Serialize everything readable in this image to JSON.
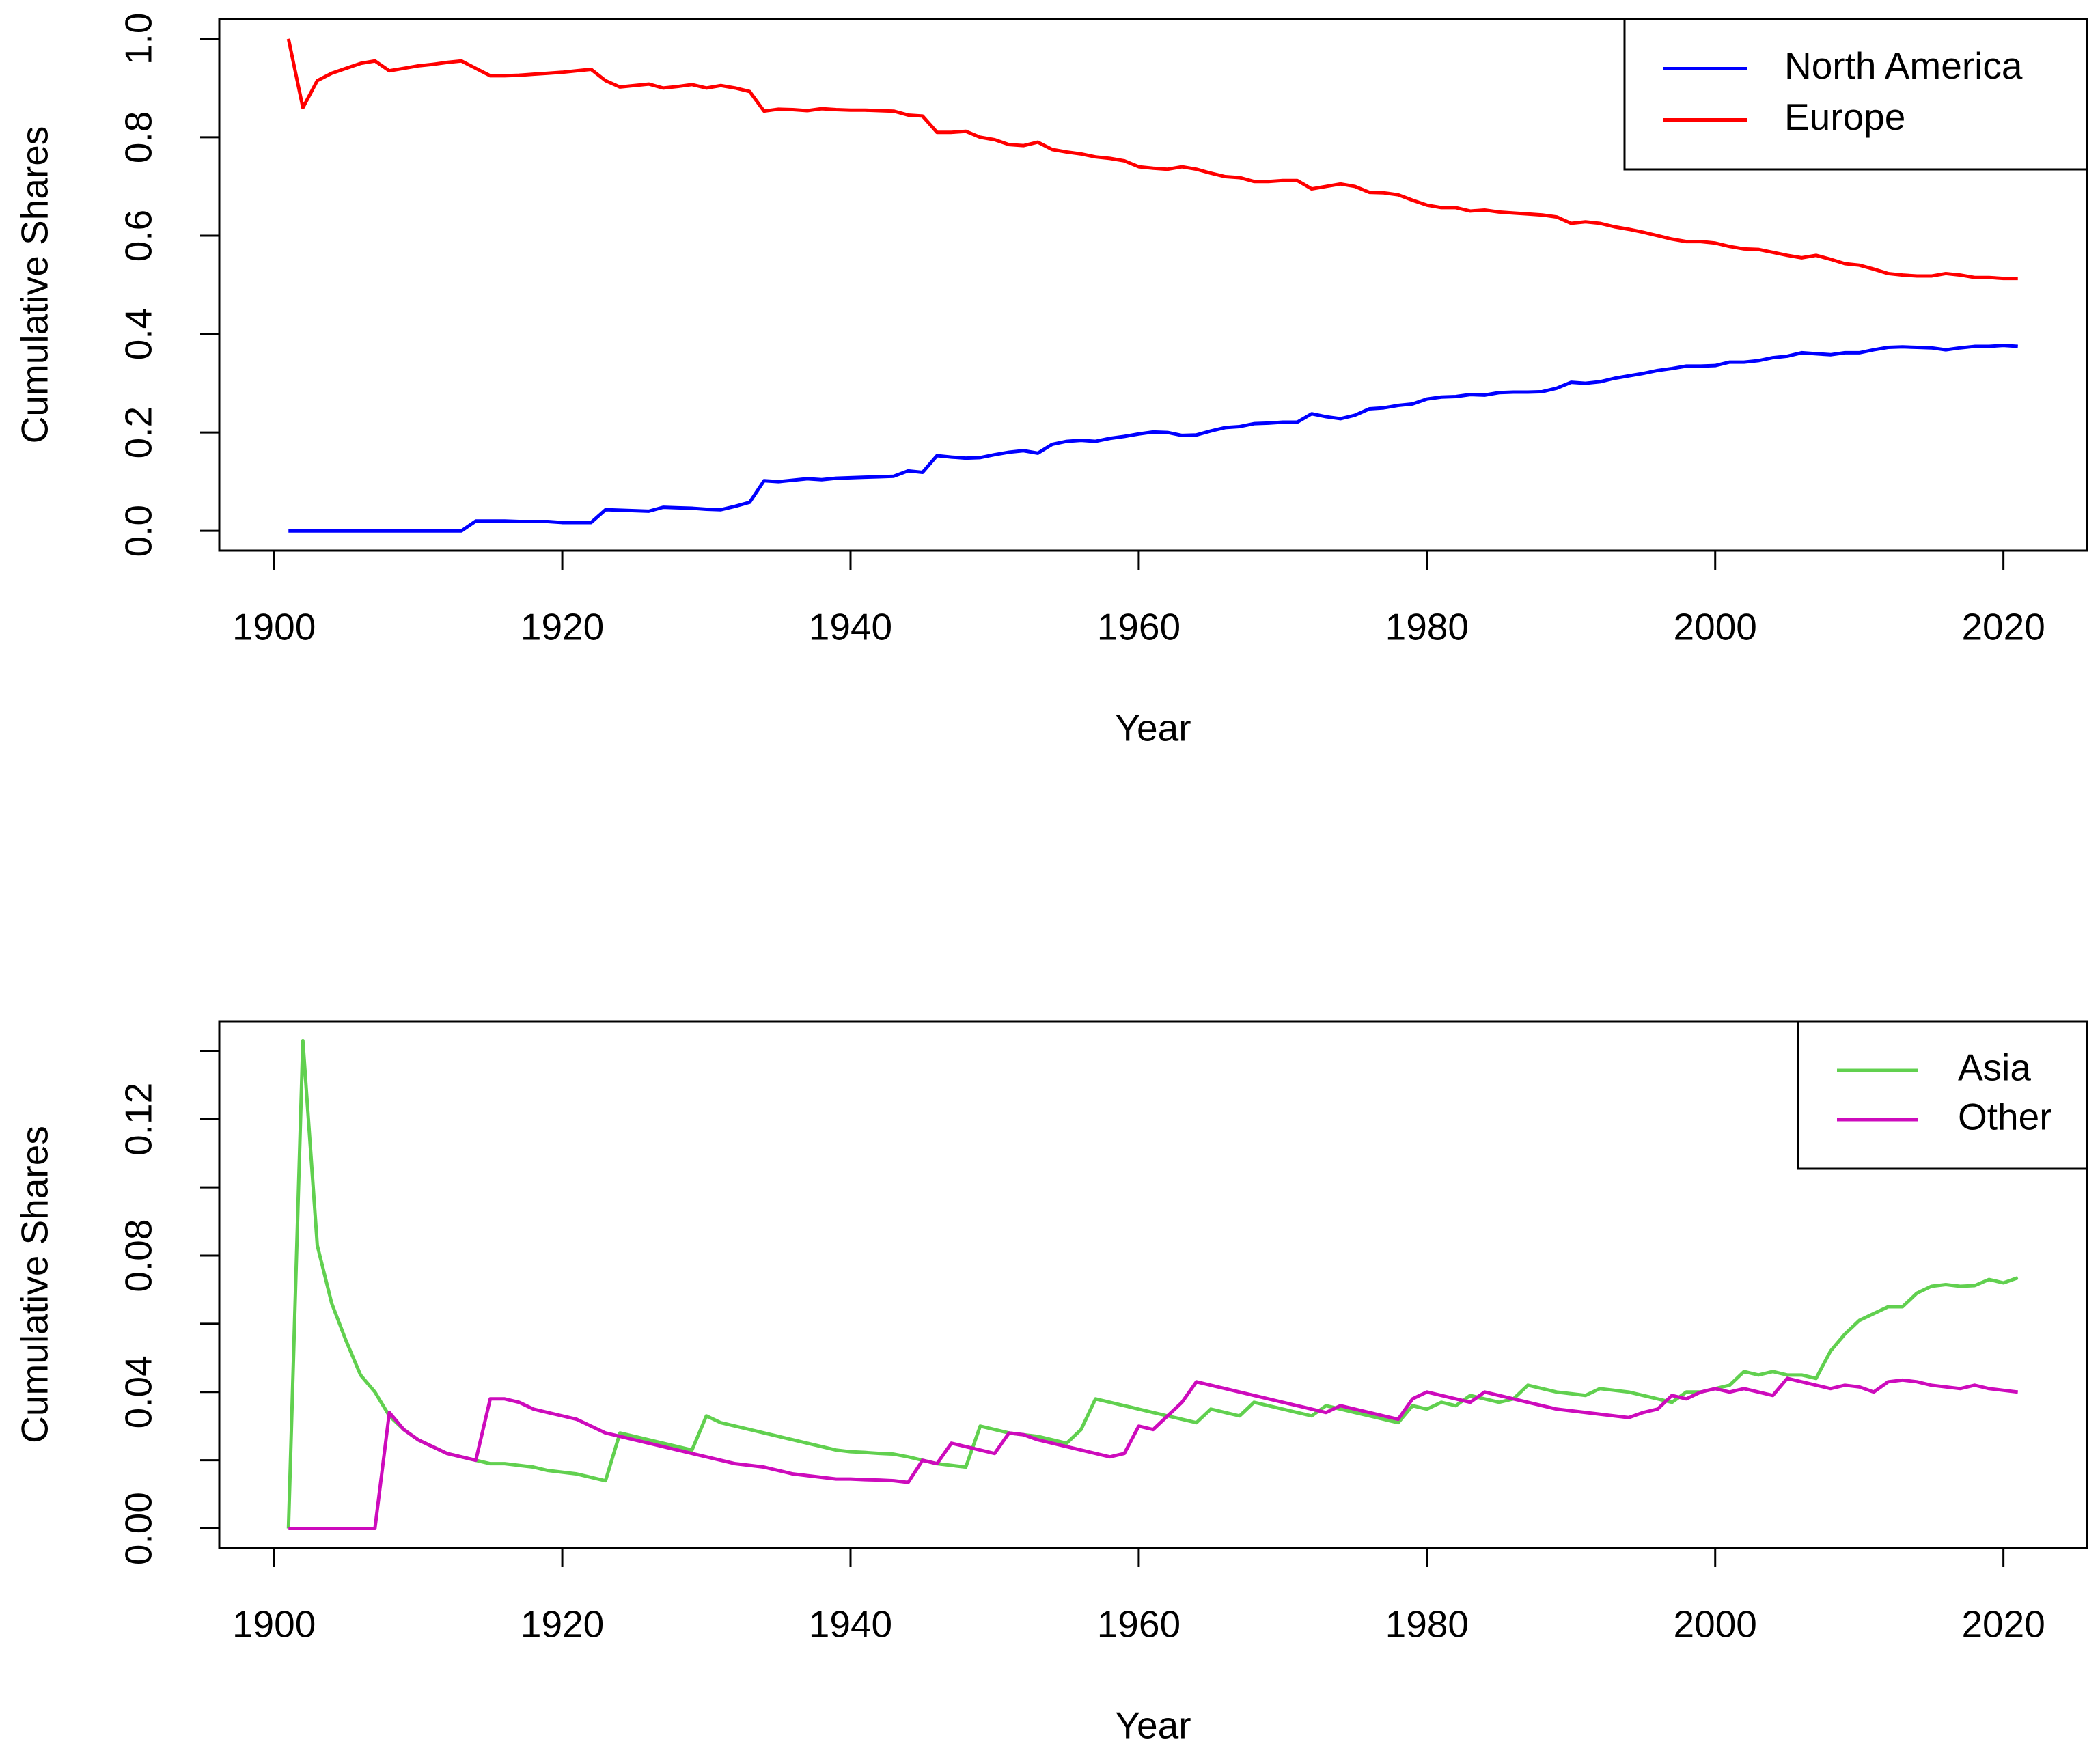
{
  "chart_data": [
    {
      "type": "line",
      "xlabel": "Year",
      "ylabel": "Cumulative Shares",
      "legend": "top-right",
      "xlim": [
        1896.2,
        2025.8
      ],
      "ylim": [
        -0.04,
        1.04
      ],
      "xticks": [
        1900,
        1920,
        1940,
        1960,
        1980,
        2000,
        2020
      ],
      "yticks": [
        {
          "value": 0,
          "label": "0.0"
        },
        0.2,
        0.4,
        0.6,
        0.8,
        {
          "value": 1,
          "label": "1.0"
        }
      ],
      "x": [
        1901,
        1902,
        1903,
        1904,
        1905,
        1906,
        1907,
        1908,
        1909,
        1910,
        1911,
        1912,
        1913,
        1914,
        1915,
        1916,
        1917,
        1918,
        1919,
        1920,
        1921,
        1922,
        1923,
        1924,
        1925,
        1926,
        1927,
        1928,
        1929,
        1930,
        1931,
        1932,
        1933,
        1934,
        1935,
        1936,
        1937,
        1938,
        1939,
        1940,
        1941,
        1942,
        1943,
        1944,
        1945,
        1946,
        1947,
        1948,
        1949,
        1950,
        1951,
        1952,
        1953,
        1954,
        1955,
        1956,
        1957,
        1958,
        1959,
        1960,
        1961,
        1962,
        1963,
        1964,
        1965,
        1966,
        1967,
        1968,
        1969,
        1970,
        1971,
        1972,
        1973,
        1974,
        1975,
        1976,
        1977,
        1978,
        1979,
        1980,
        1981,
        1982,
        1983,
        1984,
        1985,
        1986,
        1987,
        1988,
        1989,
        1990,
        1991,
        1992,
        1993,
        1994,
        1995,
        1996,
        1997,
        1998,
        1999,
        2000,
        2001,
        2002,
        2003,
        2004,
        2005,
        2006,
        2007,
        2008,
        2009,
        2010,
        2011,
        2012,
        2013,
        2014,
        2015,
        2016,
        2017,
        2018,
        2019,
        2020,
        2021
      ],
      "series": [
        {
          "name": "North America",
          "color": "#0000ff",
          "values": [
            0,
            0,
            0,
            0,
            0,
            0,
            0,
            0,
            0,
            0,
            0,
            0,
            0,
            0.02,
            0.02,
            0.02,
            0.019,
            0.019,
            0.019,
            0.017,
            0.017,
            0.017,
            0.043,
            0.042,
            0.041,
            0.04,
            0.048,
            0.047,
            0.046,
            0.044,
            0.043,
            0.05,
            0.058,
            0.102,
            0.1,
            0.103,
            0.106,
            0.104,
            0.107,
            0.108,
            0.109,
            0.11,
            0.111,
            0.122,
            0.119,
            0.153,
            0.15,
            0.148,
            0.149,
            0.155,
            0.16,
            0.163,
            0.158,
            0.176,
            0.182,
            0.184,
            0.182,
            0.188,
            0.192,
            0.197,
            0.201,
            0.2,
            0.194,
            0.195,
            0.203,
            0.21,
            0.212,
            0.218,
            0.219,
            0.221,
            0.221,
            0.238,
            0.232,
            0.228,
            0.235,
            0.248,
            0.25,
            0.255,
            0.258,
            0.268,
            0.272,
            0.273,
            0.277,
            0.276,
            0.281,
            0.282,
            0.282,
            0.283,
            0.29,
            0.302,
            0.3,
            0.303,
            0.31,
            0.315,
            0.32,
            0.326,
            0.33,
            0.335,
            0.335,
            0.336,
            0.343,
            0.343,
            0.346,
            0.352,
            0.355,
            0.362,
            0.36,
            0.358,
            0.362,
            0.362,
            0.368,
            0.373,
            0.374,
            0.373,
            0.372,
            0.368,
            0.372,
            0.375,
            0.375,
            0.377,
            0.375
          ]
        },
        {
          "name": "Europe",
          "color": "#ff0000",
          "values": [
            1,
            0.86,
            0.915,
            0.93,
            0.94,
            0.95,
            0.955,
            0.935,
            0.94,
            0.945,
            0.948,
            0.952,
            0.955,
            0.94,
            0.925,
            0.925,
            0.926,
            0.928,
            0.93,
            0.932,
            0.935,
            0.938,
            0.915,
            0.902,
            0.905,
            0.908,
            0.9,
            0.903,
            0.907,
            0.9,
            0.905,
            0.9,
            0.893,
            0.853,
            0.857,
            0.856,
            0.854,
            0.858,
            0.856,
            0.855,
            0.855,
            0.854,
            0.853,
            0.845,
            0.843,
            0.81,
            0.81,
            0.812,
            0.8,
            0.795,
            0.785,
            0.783,
            0.79,
            0.775,
            0.77,
            0.766,
            0.76,
            0.757,
            0.752,
            0.74,
            0.737,
            0.735,
            0.74,
            0.735,
            0.727,
            0.72,
            0.718,
            0.71,
            0.71,
            0.712,
            0.712,
            0.695,
            0.7,
            0.705,
            0.7,
            0.688,
            0.687,
            0.683,
            0.672,
            0.662,
            0.657,
            0.657,
            0.65,
            0.652,
            0.648,
            0.646,
            0.644,
            0.642,
            0.638,
            0.625,
            0.628,
            0.625,
            0.618,
            0.613,
            0.607,
            0.6,
            0.593,
            0.588,
            0.588,
            0.585,
            0.578,
            0.573,
            0.572,
            0.566,
            0.56,
            0.555,
            0.56,
            0.552,
            0.543,
            0.54,
            0.532,
            0.523,
            0.52,
            0.518,
            0.518,
            0.523,
            0.52,
            0.515,
            0.515,
            0.513,
            0.513
          ]
        }
      ]
    },
    {
      "type": "line",
      "xlabel": "Year",
      "ylabel": "Cumulative Shares",
      "legend": "top-right",
      "xlim": [
        1896.2,
        2025.8
      ],
      "ylim": [
        -0.0057,
        0.1487
      ],
      "xticks": [
        1900,
        1920,
        1940,
        1960,
        1980,
        2000,
        2020
      ],
      "yticks": [
        {
          "value": 0,
          "label": "0.00"
        },
        0.04,
        0.08,
        0.12
      ],
      "yminor_ticks": [
        0.02,
        0.06,
        0.1,
        0.14
      ],
      "x": [
        1901,
        1902,
        1903,
        1904,
        1905,
        1906,
        1907,
        1908,
        1909,
        1910,
        1911,
        1912,
        1913,
        1914,
        1915,
        1916,
        1917,
        1918,
        1919,
        1920,
        1921,
        1922,
        1923,
        1924,
        1925,
        1926,
        1927,
        1928,
        1929,
        1930,
        1931,
        1932,
        1933,
        1934,
        1935,
        1936,
        1937,
        1938,
        1939,
        1940,
        1941,
        1942,
        1943,
        1944,
        1945,
        1946,
        1947,
        1948,
        1949,
        1950,
        1951,
        1952,
        1953,
        1954,
        1955,
        1956,
        1957,
        1958,
        1959,
        1960,
        1961,
        1962,
        1963,
        1964,
        1965,
        1966,
        1967,
        1968,
        1969,
        1970,
        1971,
        1972,
        1973,
        1974,
        1975,
        1976,
        1977,
        1978,
        1979,
        1980,
        1981,
        1982,
        1983,
        1984,
        1985,
        1986,
        1987,
        1988,
        1989,
        1990,
        1991,
        1992,
        1993,
        1994,
        1995,
        1996,
        1997,
        1998,
        1999,
        2000,
        2001,
        2002,
        2003,
        2004,
        2005,
        2006,
        2007,
        2008,
        2009,
        2010,
        2011,
        2012,
        2013,
        2014,
        2015,
        2016,
        2017,
        2018,
        2019,
        2020,
        2021
      ],
      "series": [
        {
          "name": "Asia",
          "color": "#61d04f",
          "values": [
            0,
            0.143,
            0.083,
            0.066,
            0.055,
            0.045,
            0.04,
            0.033,
            0.029,
            0.026,
            0.024,
            0.022,
            0.021,
            0.02,
            0.019,
            0.019,
            0.0185,
            0.018,
            0.017,
            0.0165,
            0.016,
            0.015,
            0.014,
            0.028,
            0.027,
            0.026,
            0.025,
            0.024,
            0.023,
            0.033,
            0.031,
            0.03,
            0.029,
            0.028,
            0.027,
            0.026,
            0.025,
            0.024,
            0.023,
            0.0225,
            0.0223,
            0.022,
            0.0218,
            0.021,
            0.02,
            0.019,
            0.0185,
            0.018,
            0.03,
            0.029,
            0.028,
            0.0275,
            0.027,
            0.026,
            0.025,
            0.029,
            0.038,
            0.037,
            0.036,
            0.035,
            0.034,
            0.033,
            0.032,
            0.031,
            0.035,
            0.034,
            0.033,
            0.037,
            0.036,
            0.035,
            0.034,
            0.033,
            0.036,
            0.035,
            0.034,
            0.033,
            0.032,
            0.031,
            0.036,
            0.035,
            0.037,
            0.036,
            0.039,
            0.038,
            0.037,
            0.038,
            0.042,
            0.041,
            0.04,
            0.0395,
            0.039,
            0.041,
            0.0405,
            0.04,
            0.039,
            0.038,
            0.037,
            0.04,
            0.04,
            0.041,
            0.042,
            0.046,
            0.045,
            0.046,
            0.045,
            0.045,
            0.044,
            0.052,
            0.057,
            0.061,
            0.063,
            0.065,
            0.065,
            0.069,
            0.071,
            0.0715,
            0.071,
            0.0712,
            0.073,
            0.072,
            0.0735
          ]
        },
        {
          "name": "Other",
          "color": "#cd0bbc",
          "values": [
            0,
            0,
            0,
            0,
            0,
            0,
            0,
            0.034,
            0.029,
            0.026,
            0.024,
            0.022,
            0.021,
            0.02,
            0.038,
            0.038,
            0.037,
            0.035,
            0.034,
            0.033,
            0.032,
            0.03,
            0.028,
            0.027,
            0.026,
            0.025,
            0.024,
            0.023,
            0.022,
            0.021,
            0.02,
            0.019,
            0.0185,
            0.018,
            0.017,
            0.016,
            0.0155,
            0.015,
            0.0145,
            0.0145,
            0.0143,
            0.0142,
            0.014,
            0.0135,
            0.02,
            0.019,
            0.025,
            0.024,
            0.023,
            0.022,
            0.028,
            0.0275,
            0.026,
            0.025,
            0.024,
            0.023,
            0.022,
            0.021,
            0.022,
            0.03,
            0.029,
            0.033,
            0.037,
            0.043,
            0.042,
            0.041,
            0.04,
            0.039,
            0.038,
            0.037,
            0.036,
            0.035,
            0.034,
            0.036,
            0.035,
            0.034,
            0.033,
            0.032,
            0.038,
            0.04,
            0.039,
            0.038,
            0.037,
            0.04,
            0.039,
            0.038,
            0.037,
            0.036,
            0.035,
            0.0345,
            0.034,
            0.0335,
            0.033,
            0.0325,
            0.034,
            0.035,
            0.039,
            0.038,
            0.04,
            0.041,
            0.04,
            0.041,
            0.04,
            0.039,
            0.044,
            0.043,
            0.042,
            0.041,
            0.042,
            0.0415,
            0.04,
            0.043,
            0.0435,
            0.043,
            0.042,
            0.0415,
            0.041,
            0.042,
            0.041,
            0.0405,
            0.04
          ]
        }
      ]
    }
  ]
}
